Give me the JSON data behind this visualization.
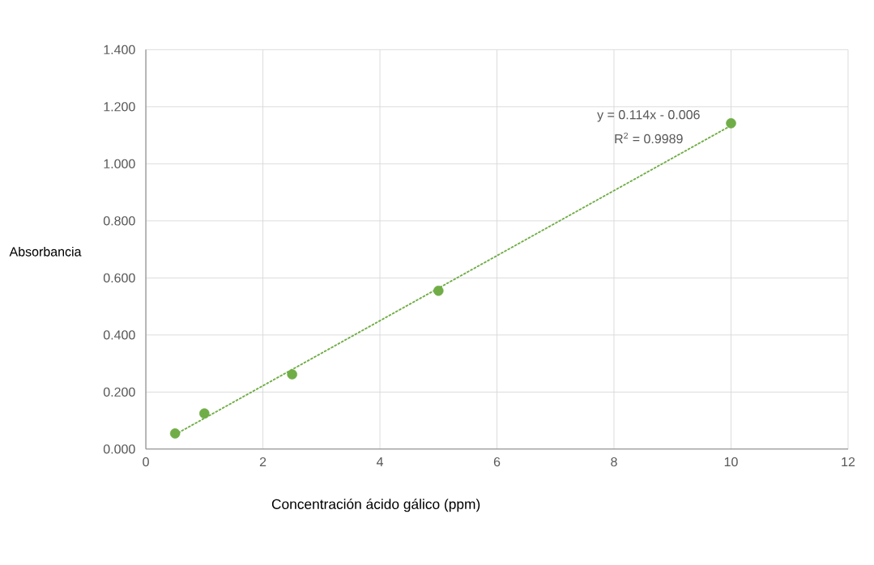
{
  "chart_data": {
    "type": "scatter",
    "xlabel": "Concentración ácido gálico (ppm)",
    "ylabel": "Absorbancia",
    "xlim": [
      0,
      12
    ],
    "xticks": [
      0,
      2,
      4,
      6,
      8,
      10,
      12
    ],
    "ylim": [
      0,
      1.4
    ],
    "yticks": [
      {
        "value": 0,
        "label": "0.000"
      },
      {
        "value": 0.2,
        "label": "0.200"
      },
      {
        "value": 0.4,
        "label": "0.400"
      },
      {
        "value": 0.6,
        "label": "0.600"
      },
      {
        "value": 0.8,
        "label": "0.800"
      },
      {
        "value": 1.0,
        "label": "1.000"
      },
      {
        "value": 1.2,
        "label": "1.200"
      },
      {
        "value": 1.4,
        "label": "1.400"
      }
    ],
    "grid": true,
    "series": [
      {
        "color": "#70ad47",
        "marker": "circle",
        "x": [
          0.5,
          1,
          2.5,
          5,
          10
        ],
        "values": [
          0.055,
          0.125,
          0.262,
          0.555,
          1.142
        ]
      },
      {
        "type": "line",
        "color": "#70ad47",
        "marker": "none",
        "line_style": "dotted",
        "x": [
          0.5,
          10
        ],
        "values": [
          0.051,
          1.134
        ]
      }
    ],
    "annotations": [
      "y = 0.114x - 0.006",
      "R$^{2}$ = 0.9989"
    ]
  }
}
